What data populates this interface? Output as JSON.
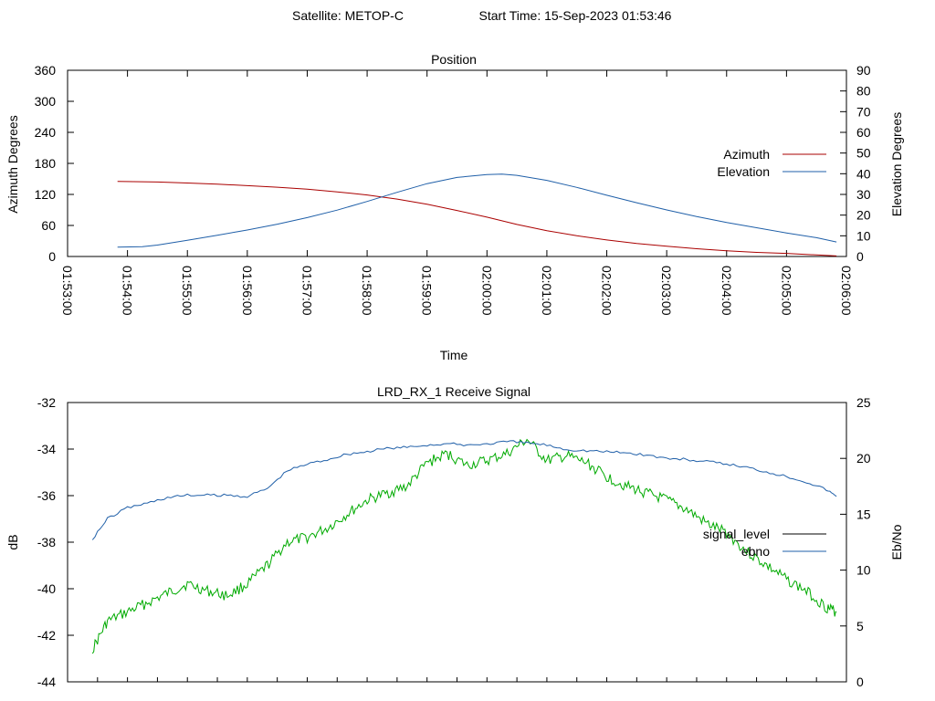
{
  "header": {
    "satellite_text": "Satellite: METOP-C",
    "start_time_text": "Start Time: 15-Sep-2023 01:53:46"
  },
  "colors": {
    "azimuth": "#aa0000",
    "elevation": "#1f5fa8",
    "signal_level": "#00aa00",
    "ebno": "#1f5fa8",
    "legend_signal_level": "#000000"
  },
  "chart_data": [
    {
      "type": "line",
      "title": "Position",
      "xlabel": "Time",
      "ylabel": "Azimuth Degrees",
      "y2label": "Elevation Degrees",
      "x_range": [
        "01:53:00",
        "02:06:00"
      ],
      "x_ticks": [
        "01:53:00",
        "01:54:00",
        "01:55:00",
        "01:56:00",
        "01:57:00",
        "01:58:00",
        "01:59:00",
        "02:00:00",
        "02:01:00",
        "02:02:00",
        "02:03:00",
        "02:04:00",
        "02:05:00",
        "02:06:00"
      ],
      "ylim": [
        0,
        360
      ],
      "y_ticks": [
        "0",
        "60",
        "120",
        "180",
        "240",
        "300",
        "360"
      ],
      "y2lim": [
        0,
        90
      ],
      "y2_ticks": [
        "0",
        "10",
        "20",
        "30",
        "40",
        "50",
        "60",
        "70",
        "80",
        "90"
      ],
      "legend_position": "right",
      "series": [
        {
          "name": "Azimuth",
          "axis": "y",
          "x": [
            "01:53:50",
            "01:54:30",
            "01:55:00",
            "01:55:30",
            "01:56:00",
            "01:56:30",
            "01:57:00",
            "01:57:30",
            "01:58:00",
            "01:58:30",
            "01:59:00",
            "01:59:30",
            "02:00:00",
            "02:00:30",
            "02:01:00",
            "02:01:30",
            "02:02:00",
            "02:02:30",
            "02:03:00",
            "02:03:30",
            "02:04:00",
            "02:04:30",
            "02:05:00",
            "02:05:30",
            "02:05:50"
          ],
          "values": [
            145,
            144,
            142,
            140,
            137,
            134,
            130,
            125,
            119,
            111,
            101,
            89,
            76,
            62,
            50,
            40,
            32,
            25,
            20,
            15,
            11,
            8,
            6,
            3,
            1
          ]
        },
        {
          "name": "Elevation",
          "axis": "y2",
          "x": [
            "01:53:50",
            "01:54:15",
            "01:54:30",
            "01:55:00",
            "01:55:30",
            "01:56:00",
            "01:56:30",
            "01:57:00",
            "01:57:30",
            "01:58:00",
            "01:58:30",
            "01:59:00",
            "01:59:30",
            "02:00:00",
            "02:00:15",
            "02:00:30",
            "02:01:00",
            "02:01:30",
            "02:02:00",
            "02:02:30",
            "02:03:00",
            "02:03:30",
            "02:04:00",
            "02:04:30",
            "02:05:00",
            "02:05:30",
            "02:05:50"
          ],
          "values": [
            4.5,
            4.7,
            5.5,
            7.8,
            10.3,
            12.8,
            15.6,
            18.8,
            22.4,
            26.6,
            31,
            35.2,
            38.2,
            39.6,
            39.8,
            39.2,
            36.8,
            33.4,
            29.6,
            26,
            22.5,
            19.3,
            16.4,
            13.9,
            11.4,
            9.1,
            7
          ]
        }
      ]
    },
    {
      "type": "line",
      "title": "LRD_RX_1 Receive Signal",
      "ylabel": "dB",
      "y2label": "Eb/No",
      "x_range": [
        "01:53:00",
        "02:06:00"
      ],
      "ylim": [
        -44,
        -32
      ],
      "y_ticks": [
        "-44",
        "-42",
        "-40",
        "-38",
        "-36",
        "-34",
        "-32"
      ],
      "y2lim": [
        0,
        25
      ],
      "y2_ticks": [
        "0",
        "5",
        "10",
        "15",
        "20",
        "25"
      ],
      "legend_position": "right",
      "series": [
        {
          "name": "signal_level",
          "axis": "y",
          "x": [
            "01:53:25",
            "01:53:40",
            "01:54:00",
            "01:54:20",
            "01:54:40",
            "01:55:00",
            "01:55:20",
            "01:55:40",
            "01:56:00",
            "01:56:20",
            "01:56:40",
            "01:57:00",
            "01:57:20",
            "01:57:40",
            "01:58:00",
            "01:58:20",
            "01:58:40",
            "01:59:00",
            "01:59:20",
            "01:59:40",
            "02:00:00",
            "02:00:20",
            "02:00:40",
            "02:01:00",
            "02:01:20",
            "02:01:40",
            "02:02:00",
            "02:02:20",
            "02:02:40",
            "02:03:00",
            "02:03:20",
            "02:03:40",
            "02:04:00",
            "02:04:20",
            "02:04:40",
            "02:05:00",
            "02:05:20",
            "02:05:40",
            "02:05:50"
          ],
          "values": [
            -42.6,
            -41.4,
            -41.0,
            -40.6,
            -40.2,
            -39.8,
            -40.1,
            -40.3,
            -39.8,
            -39.0,
            -38.0,
            -37.8,
            -37.4,
            -36.8,
            -36.2,
            -35.9,
            -35.6,
            -34.6,
            -34.2,
            -34.7,
            -34.5,
            -34.2,
            -33.6,
            -34.5,
            -34.3,
            -34.6,
            -35.2,
            -35.6,
            -35.9,
            -36.2,
            -36.6,
            -37.2,
            -37.6,
            -38.4,
            -39.0,
            -39.6,
            -40.1,
            -40.8,
            -41.0
          ]
        },
        {
          "name": "ebno",
          "axis": "y2",
          "x": [
            "01:53:25",
            "01:53:40",
            "01:54:00",
            "01:54:20",
            "01:54:40",
            "01:55:00",
            "01:55:20",
            "01:55:40",
            "01:56:00",
            "01:56:20",
            "01:56:40",
            "01:57:00",
            "01:57:20",
            "01:57:40",
            "01:58:00",
            "01:58:20",
            "01:58:40",
            "01:59:00",
            "01:59:20",
            "01:59:40",
            "02:00:00",
            "02:00:20",
            "02:00:40",
            "02:01:00",
            "02:01:20",
            "02:01:40",
            "02:02:00",
            "02:02:20",
            "02:02:40",
            "02:03:00",
            "02:03:20",
            "02:03:40",
            "02:04:00",
            "02:04:20",
            "02:04:40",
            "02:05:00",
            "02:05:20",
            "02:05:40",
            "02:05:50"
          ],
          "values": [
            12.8,
            14.6,
            15.6,
            16.0,
            16.5,
            16.7,
            16.7,
            16.7,
            16.6,
            17.3,
            18.9,
            19.5,
            19.9,
            20.4,
            20.6,
            20.9,
            21.0,
            21.2,
            21.3,
            21.2,
            21.3,
            21.5,
            21.4,
            21.2,
            20.8,
            20.7,
            20.6,
            20.5,
            20.3,
            20.0,
            19.9,
            19.7,
            19.5,
            19.2,
            18.8,
            18.4,
            17.9,
            17.2,
            16.6
          ]
        }
      ]
    }
  ]
}
